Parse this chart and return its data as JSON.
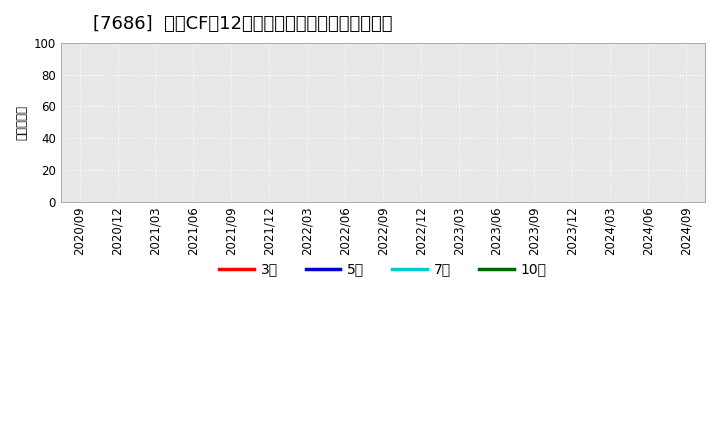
{
  "title": "[7686]  投賄CFだ12か月移動合計の標準偏差の推移",
  "ylabel": "（百万円）",
  "ylim": [
    0,
    100
  ],
  "yticks": [
    0,
    20,
    40,
    60,
    80,
    100
  ],
  "x_labels": [
    "2020/09",
    "2020/12",
    "2021/03",
    "2021/06",
    "2021/09",
    "2021/12",
    "2022/03",
    "2022/06",
    "2022/09",
    "2022/12",
    "2023/03",
    "2023/06",
    "2023/09",
    "2023/12",
    "2024/03",
    "2024/06",
    "2024/09"
  ],
  "legend_entries": [
    {
      "label": "3年",
      "color": "#ff0000"
    },
    {
      "label": "5年",
      "color": "#0000cc"
    },
    {
      "label": "7年",
      "color": "#00cccc"
    },
    {
      "label": "10年",
      "color": "#006600"
    }
  ],
  "bg_color": "#ffffff",
  "plot_bg_color": "#e8e8e8",
  "grid_color": "#ffffff",
  "title_fontsize": 13,
  "axis_fontsize": 8.5,
  "legend_fontsize": 10
}
